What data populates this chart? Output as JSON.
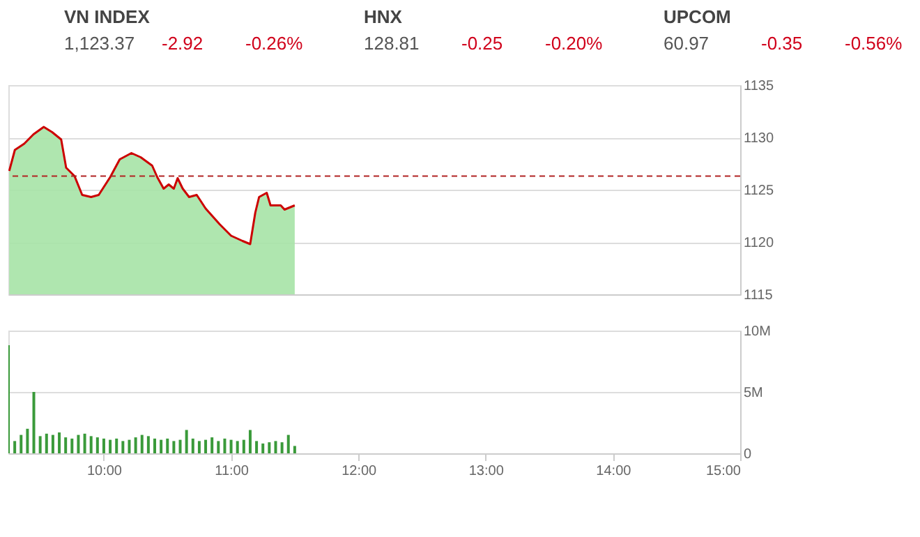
{
  "chart_data": [
    {
      "type": "other",
      "annotations": [
        "VN INDEX",
        "1,123.37",
        "-2.92",
        "-0.26%",
        "HNX",
        "128.81",
        "-0.25",
        "-0.20%",
        "UPCOM",
        "60.97",
        "-0.35",
        "-0.56%"
      ]
    },
    {
      "type": "area",
      "series": [
        {
          "color": "#a6e3a6",
          "x": [
            9.257,
            9.301,
            9.375,
            9.448,
            9.528,
            9.594,
            9.665,
            9.704,
            9.77,
            9.83,
            9.9,
            9.96,
            10.05,
            10.125,
            10.217,
            10.29,
            10.38,
            10.42,
            10.47,
            10.51,
            10.55,
            10.58,
            10.62,
            10.67,
            10.73,
            10.8,
            10.91,
            11.0,
            11.09,
            11.15,
            11.19,
            11.22,
            11.28,
            11.31,
            11.39,
            11.42,
            11.5
          ],
          "values": [
            1126.8,
            1128.8,
            1129.4,
            1130.3,
            1131.0,
            1130.5,
            1129.8,
            1127.1,
            1126.3,
            1124.5,
            1124.3,
            1124.5,
            1126.2,
            1127.9,
            1128.5,
            1128.1,
            1127.3,
            1126.2,
            1125.1,
            1125.5,
            1125.1,
            1126.1,
            1125.1,
            1124.3,
            1124.5,
            1123.2,
            1121.7,
            1120.6,
            1120.1,
            1119.8,
            1122.8,
            1124.3,
            1124.7,
            1123.5,
            1123.5,
            1123.1,
            1123.5
          ]
        },
        {
          "type": "line",
          "color": "#cc0000",
          "x": [
            9.257,
            9.301,
            9.375,
            9.448,
            9.528,
            9.594,
            9.665,
            9.704,
            9.77,
            9.83,
            9.9,
            9.96,
            10.05,
            10.125,
            10.217,
            10.29,
            10.38,
            10.42,
            10.47,
            10.51,
            10.55,
            10.58,
            10.62,
            10.67,
            10.73,
            10.8,
            10.91,
            11.0,
            11.09,
            11.15,
            11.19,
            11.22,
            11.28,
            11.31,
            11.39,
            11.42,
            11.5
          ],
          "values": [
            1126.8,
            1128.8,
            1129.4,
            1130.3,
            1131.0,
            1130.5,
            1129.8,
            1127.1,
            1126.3,
            1124.5,
            1124.3,
            1124.5,
            1126.2,
            1127.9,
            1128.5,
            1128.1,
            1127.3,
            1126.2,
            1125.1,
            1125.5,
            1125.1,
            1126.1,
            1125.1,
            1124.3,
            1124.5,
            1123.2,
            1121.7,
            1120.6,
            1120.1,
            1119.8,
            1122.8,
            1124.3,
            1124.7,
            1123.5,
            1123.5,
            1123.1,
            1123.5
          ]
        }
      ],
      "xlim": [
        9.25,
        15
      ],
      "ylim": [
        1115,
        1135
      ],
      "yticks": [
        1115,
        1120,
        1125,
        1130,
        1135
      ],
      "grid": "y",
      "tick_labels": "y",
      "ref_lines": [
        {
          "axis": "y",
          "value": 1126.3,
          "color": "#b22222",
          "line_style": "dashed"
        }
      ]
    },
    {
      "type": "bar",
      "series": [
        {
          "color": "#3a9a3a",
          "x": [
            9.25,
            9.3,
            9.35,
            9.4,
            9.45,
            9.5,
            9.55,
            9.6,
            9.65,
            9.7,
            9.75,
            9.8,
            9.85,
            9.9,
            9.95,
            10.0,
            10.05,
            10.1,
            10.15,
            10.2,
            10.25,
            10.3,
            10.35,
            10.4,
            10.45,
            10.5,
            10.55,
            10.6,
            10.65,
            10.7,
            10.75,
            10.8,
            10.85,
            10.9,
            10.95,
            11.0,
            11.05,
            11.1,
            11.15,
            11.2,
            11.25,
            11.3,
            11.35,
            11.4,
            11.45,
            11.5
          ],
          "values": [
            8.8,
            1.0,
            1.5,
            2.0,
            5.0,
            1.4,
            1.6,
            1.5,
            1.7,
            1.3,
            1.2,
            1.5,
            1.6,
            1.4,
            1.3,
            1.2,
            1.1,
            1.2,
            1.0,
            1.1,
            1.3,
            1.5,
            1.4,
            1.2,
            1.1,
            1.2,
            1.0,
            1.1,
            1.9,
            1.2,
            1.0,
            1.1,
            1.3,
            1.0,
            1.2,
            1.1,
            1.0,
            1.1,
            1.9,
            1.0,
            0.8,
            0.9,
            1.0,
            0.9,
            1.5,
            0.6
          ]
        }
      ],
      "xlim": [
        9.25,
        15
      ],
      "xticks": [
        {
          "value": 10,
          "label": "10:00"
        },
        {
          "value": 11,
          "label": "11:00"
        },
        {
          "value": 12,
          "label": "12:00"
        },
        {
          "value": 13,
          "label": "13:00"
        },
        {
          "value": 14,
          "label": "14:00"
        },
        {
          "value": 15,
          "label": "15:00"
        }
      ],
      "ylim": [
        0,
        10
      ],
      "yticks": [
        0,
        {
          "value": 5,
          "label": "5M"
        },
        {
          "value": 10,
          "label": "10M"
        }
      ],
      "grid": "y"
    }
  ]
}
